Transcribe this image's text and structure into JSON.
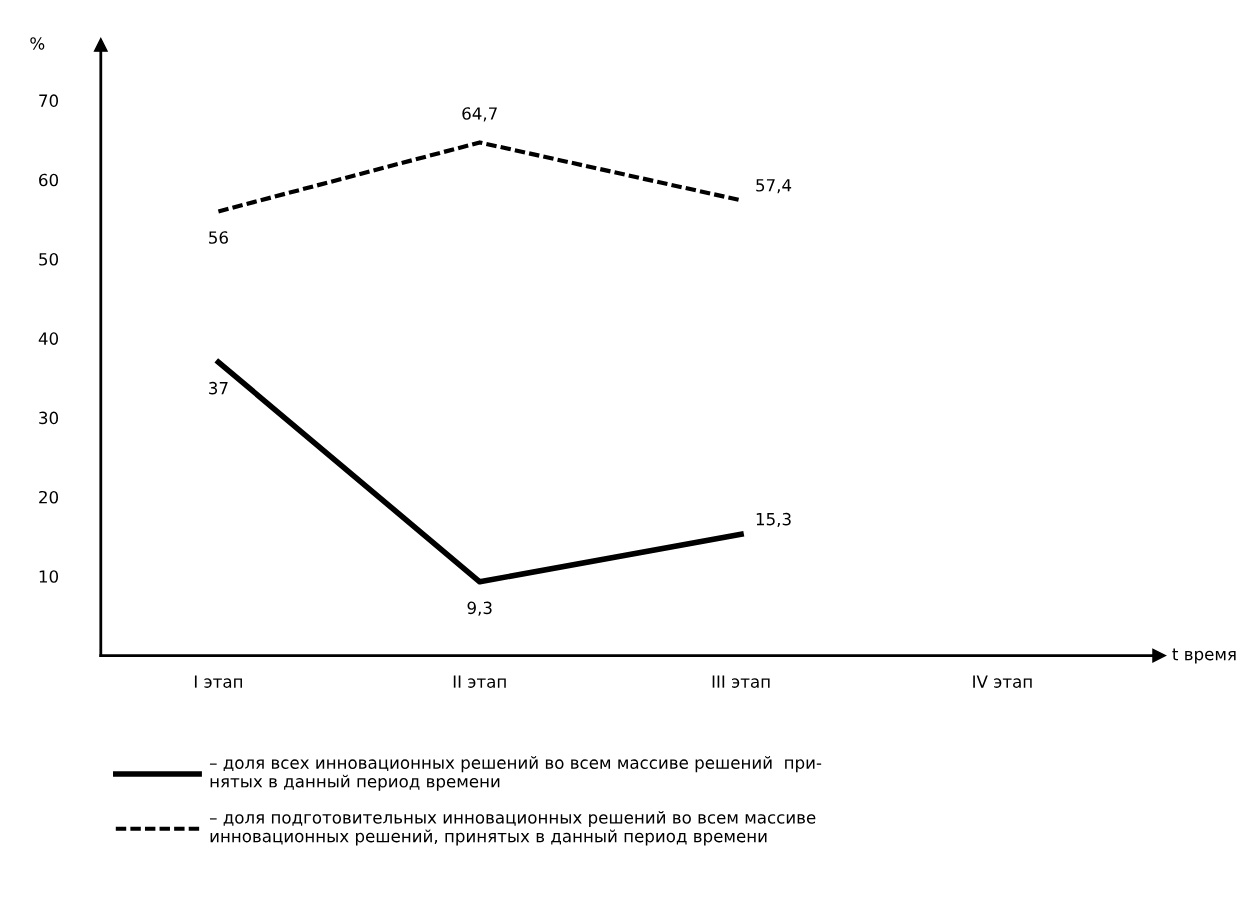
{
  "chart_data": {
    "type": "line",
    "ylabel": "%",
    "xlabel": "t время",
    "categories": [
      "I этап",
      "II этап",
      "III этап",
      "IV этап"
    ],
    "series": [
      {
        "name": "– доля всех инновационных решений во всем массиве решений  при-\nнятых в данный период времени",
        "color": "#000000",
        "line_style": "solid",
        "values": [
          37,
          9.3,
          15.3,
          null
        ],
        "value_labels": [
          "37",
          "9,3",
          "15,3",
          null
        ]
      },
      {
        "name": "– доля подготовительных инновационных решений во всем массиве\nинновационных решений, принятых в данный период времени",
        "color": "#000000",
        "line_style": "dashed",
        "values": [
          56,
          64.7,
          57.4,
          null
        ],
        "value_labels": [
          "56",
          "64,7",
          "57,4",
          null
        ]
      }
    ],
    "ylim": [
      0,
      77
    ],
    "yticks": [
      10,
      20,
      30,
      40,
      50,
      60,
      70
    ],
    "grid": false,
    "legend": "bottom",
    "marker": "none"
  }
}
